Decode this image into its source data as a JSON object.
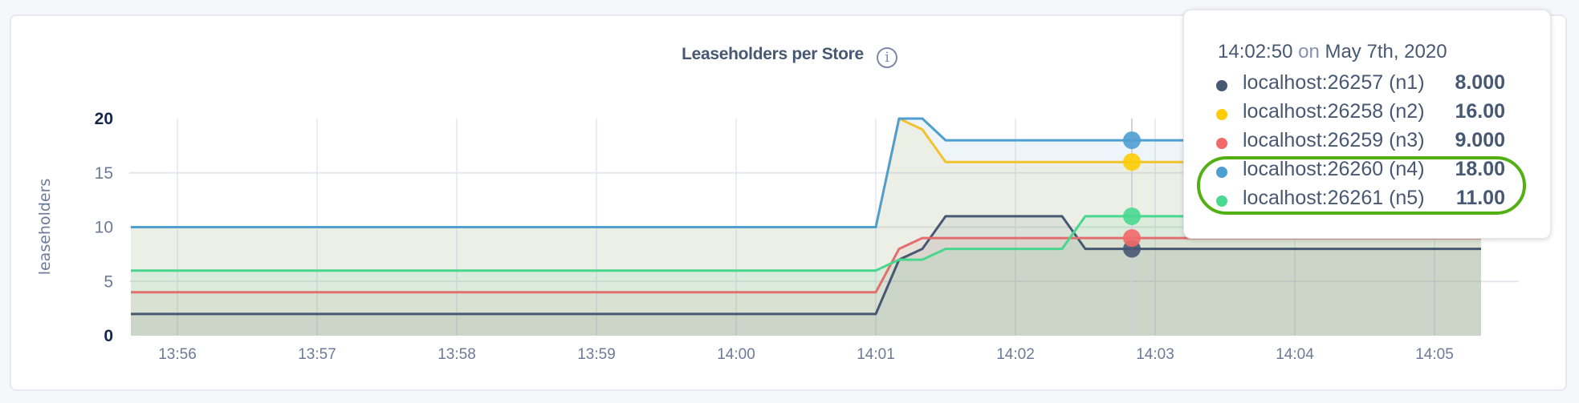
{
  "chart_data": {
    "type": "area",
    "title": "Leaseholders per Store",
    "ylabel": "leaseholders",
    "xlabel": "",
    "ylim": [
      0,
      20
    ],
    "y_ticks": [
      "0",
      "5",
      "10",
      "15",
      "20"
    ],
    "x_ticks": [
      "13:56",
      "13:57",
      "13:58",
      "13:59",
      "14:00",
      "14:01",
      "14:02",
      "14:03",
      "14:04",
      "14:05"
    ],
    "x_range": [
      "13:55:40",
      "14:05:20"
    ],
    "grid": true,
    "hover_time": "14:02:50",
    "series": [
      {
        "name": "localhost:26257 (n1)",
        "color": "#475872",
        "points": [
          [
            "13:55:40",
            2
          ],
          [
            "14:01:00",
            2
          ],
          [
            "14:01:10",
            7
          ],
          [
            "14:01:20",
            8
          ],
          [
            "14:01:30",
            11
          ],
          [
            "14:02:20",
            11
          ],
          [
            "14:02:30",
            8
          ],
          [
            "14:05:20",
            8
          ]
        ]
      },
      {
        "name": "localhost:26258 (n2)",
        "color": "#f2c22c",
        "points": [
          [
            "13:55:40",
            10
          ],
          [
            "14:01:00",
            10
          ],
          [
            "14:01:10",
            20
          ],
          [
            "14:01:20",
            19
          ],
          [
            "14:01:30",
            16
          ],
          [
            "14:05:20",
            16
          ]
        ]
      },
      {
        "name": "localhost:26259 (n3)",
        "color": "#e36e6e",
        "points": [
          [
            "13:55:40",
            4
          ],
          [
            "14:01:00",
            4
          ],
          [
            "14:01:10",
            8
          ],
          [
            "14:01:20",
            9
          ],
          [
            "14:05:20",
            9
          ]
        ]
      },
      {
        "name": "localhost:26260 (n4)",
        "color": "#4f9fd1",
        "points": [
          [
            "13:55:40",
            10
          ],
          [
            "14:01:00",
            10
          ],
          [
            "14:01:10",
            20
          ],
          [
            "14:01:20",
            20
          ],
          [
            "14:01:30",
            18
          ],
          [
            "14:05:20",
            18
          ]
        ]
      },
      {
        "name": "localhost:26261 (n5)",
        "color": "#49d68f",
        "points": [
          [
            "13:55:40",
            6
          ],
          [
            "14:01:00",
            6
          ],
          [
            "14:01:10",
            7
          ],
          [
            "14:01:20",
            7
          ],
          [
            "14:01:30",
            8
          ],
          [
            "14:02:20",
            8
          ],
          [
            "14:02:30",
            11
          ],
          [
            "14:05:20",
            11
          ]
        ]
      }
    ]
  },
  "tooltip": {
    "time": "14:02:50",
    "on": "on",
    "date": "May 7th, 2020",
    "rows": [
      {
        "label": "localhost:26257 (n1)",
        "value": "8.000",
        "color": "#475872"
      },
      {
        "label": "localhost:26258 (n2)",
        "value": "16.00",
        "color": "#ffcd02"
      },
      {
        "label": "localhost:26259 (n3)",
        "value": "9.000",
        "color": "#f16969"
      },
      {
        "label": "localhost:26260 (n4)",
        "value": "18.00",
        "color": "#4e9fd1"
      },
      {
        "label": "localhost:26261 (n5)",
        "value": "11.00",
        "color": "#49d990"
      }
    ],
    "highlight_color": "#52b012"
  },
  "info_icon": "info-circle-icon",
  "info_glyph": "i"
}
